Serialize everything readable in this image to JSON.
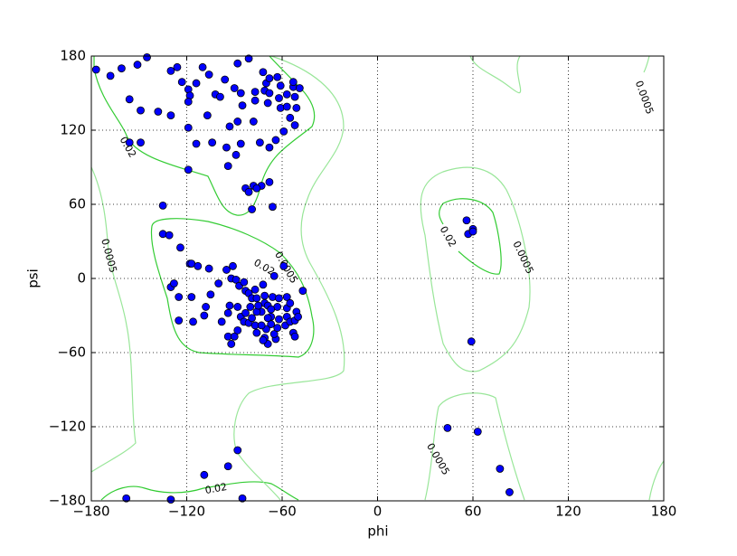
{
  "chart_data": {
    "type": "scatter",
    "x_label": "phi",
    "y_label": "psi",
    "x": [
      -145,
      -161,
      -151,
      -168,
      -177,
      -130,
      -126,
      -110,
      -106,
      -123,
      -114,
      -119,
      -118,
      -119,
      -102,
      -99,
      -96,
      -90,
      -86,
      -85,
      -88,
      -93,
      -107,
      -119,
      -130,
      -138,
      -149,
      -149,
      -156,
      -114,
      -104,
      -88,
      -81,
      -72,
      -70,
      -71,
      -68,
      -68,
      -69,
      -77,
      -77,
      -78,
      -74,
      -63,
      -61,
      -62,
      -57,
      -61,
      -57,
      -53,
      -52,
      -51,
      -55,
      -52,
      -59,
      -49,
      -53,
      -64,
      -68,
      -73,
      -78,
      -83,
      -76,
      -81,
      -68,
      -79,
      -66,
      -94,
      -89,
      -86,
      -95,
      -119,
      -135,
      -156,
      -135,
      -131,
      -124,
      -118,
      -117,
      -113,
      -106,
      -95,
      -91,
      -92,
      -89,
      -100,
      -87,
      -84,
      -83,
      -81,
      -77,
      -72,
      -71,
      -66,
      -62,
      -57,
      -57,
      -65,
      -59,
      -47,
      -130,
      -128,
      -125,
      -117,
      -125,
      -116,
      -105,
      -108,
      -109,
      -98,
      -94,
      -93,
      -94,
      -90,
      -92,
      -88,
      -86,
      -88,
      -83,
      -84,
      -81,
      -80,
      -79,
      -76,
      -73,
      -71,
      -69,
      -67,
      -67,
      -70,
      -76,
      -77,
      -73,
      -71,
      -69,
      -64,
      -65,
      -63,
      -62,
      -57,
      -58,
      -55,
      -53,
      -52,
      -52,
      -55,
      -51,
      -50,
      -63,
      -72,
      -79,
      -76,
      -67,
      -69,
      -75,
      56,
      60,
      57,
      60,
      59,
      44,
      63,
      77,
      83,
      -158,
      -130,
      -109,
      -94,
      -88,
      -85
    ],
    "y": [
      179,
      170,
      173,
      164,
      169,
      168,
      171,
      171,
      165,
      159,
      158,
      153,
      148,
      143,
      149,
      147,
      161,
      154,
      150,
      140,
      127,
      123,
      132,
      122,
      132,
      135,
      136,
      110,
      110,
      109,
      110,
      174,
      178,
      167,
      158,
      152,
      162,
      150,
      142,
      151,
      144,
      127,
      110,
      163,
      156,
      146,
      149,
      138,
      139,
      155,
      147,
      138,
      130,
      124,
      119,
      154,
      159,
      112,
      106,
      75,
      75,
      73,
      73,
      70,
      78,
      56,
      58,
      91,
      100,
      109,
      106,
      88,
      59,
      145,
      36,
      35,
      25,
      12,
      12,
      10,
      8,
      7,
      10,
      0,
      -1,
      -4,
      -6,
      -3,
      -10,
      -12,
      -9,
      -5,
      -14,
      -15,
      -16,
      -15,
      -24,
      2,
      10,
      -10,
      -7,
      -4,
      -15,
      -15,
      -34,
      -35,
      -13,
      -23,
      -30,
      -35,
      -28,
      -22,
      -47,
      -47,
      -53,
      -42,
      -31,
      -23,
      -28,
      -35,
      -36,
      -23,
      -16,
      -16,
      -27,
      -20,
      -22,
      -31,
      -37,
      -41,
      -44,
      -38,
      -38,
      -48,
      -53,
      -49,
      -45,
      -40,
      -33,
      -31,
      -38,
      -35,
      -44,
      -47,
      -34,
      -20,
      -27,
      -31,
      -23,
      -50,
      -32,
      -27,
      -25,
      -32,
      -22,
      47,
      40,
      36,
      38,
      -51,
      -121,
      -124,
      -154,
      -173,
      -178,
      -179,
      -159,
      -152,
      -139,
      -178
    ],
    "color": "#0000ff",
    "xlim": [
      -180,
      180
    ],
    "ylim": [
      -180,
      180
    ],
    "xticks": [
      {
        "value": -180,
        "label": "−180"
      },
      {
        "value": -120,
        "label": "−120"
      },
      {
        "value": -60,
        "label": "−60"
      },
      0,
      60,
      120,
      180
    ],
    "yticks": [
      {
        "value": -180,
        "label": "−180"
      },
      {
        "value": -120,
        "label": "−120"
      },
      {
        "value": -60,
        "label": "−60"
      },
      0,
      60,
      120,
      180
    ],
    "grid": true,
    "contours": [
      {
        "level": 0.02,
        "color": "#33cc33"
      },
      {
        "level": 0.0005,
        "color": "#99e699"
      }
    ]
  }
}
